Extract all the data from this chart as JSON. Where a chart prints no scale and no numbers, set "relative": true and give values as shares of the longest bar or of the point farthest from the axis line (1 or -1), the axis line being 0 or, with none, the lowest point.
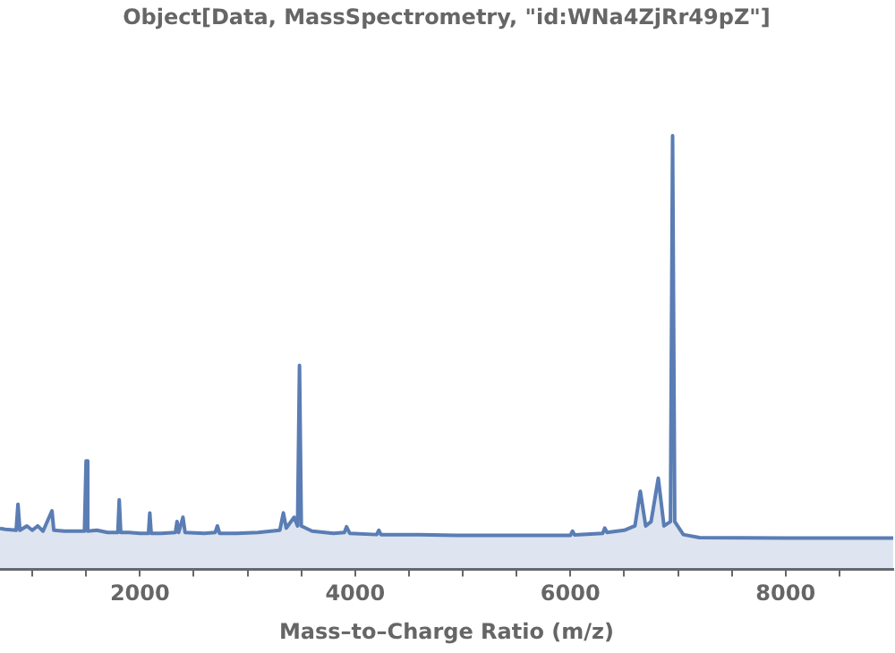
{
  "chart_data": {
    "type": "area",
    "title": "Object[Data, MassSpectrometry, \"id:WNa4ZjRr49pZ\"]",
    "xlabel": "Mass–to–Charge Ratio (m/z)",
    "relative": true,
    "grid": false,
    "legend": false,
    "color": "#5a7db4",
    "xlim": [
      700,
      9000
    ],
    "xticks": [
      {
        "value": 1000,
        "label": null
      },
      {
        "value": 1500,
        "label": null
      },
      2000,
      {
        "value": 2500,
        "label": null
      },
      {
        "value": 3000,
        "label": null
      },
      {
        "value": 3500,
        "label": null
      },
      4000,
      {
        "value": 4500,
        "label": null
      },
      {
        "value": 5000,
        "label": null
      },
      {
        "value": 5500,
        "label": null
      },
      6000,
      {
        "value": 6500,
        "label": null
      },
      {
        "value": 7000,
        "label": null
      },
      {
        "value": 7500,
        "label": null
      },
      8000,
      {
        "value": 8500,
        "label": null
      }
    ],
    "x": [
      700,
      750,
      850,
      867,
      885,
      950,
      1000,
      1050,
      1100,
      1183,
      1200,
      1300,
      1485,
      1500,
      1515,
      1600,
      1700,
      1795,
      1808,
      1822,
      1900,
      2000,
      2080,
      2092,
      2105,
      2200,
      2330,
      2345,
      2360,
      2400,
      2420,
      2600,
      2700,
      2720,
      2740,
      2900,
      3100,
      3300,
      3333,
      3360,
      3433,
      3465,
      3483,
      3500,
      3600,
      3800,
      3900,
      3920,
      3950,
      4200,
      4220,
      4240,
      4600,
      5000,
      5500,
      6000,
      6020,
      6040,
      6300,
      6320,
      6340,
      6500,
      6600,
      6650,
      6700,
      6750,
      6817,
      6870,
      6930,
      6950,
      6970,
      7050,
      7200,
      8000,
      9000
    ],
    "values": [
      0.094,
      0.092,
      0.09,
      0.15,
      0.09,
      0.1,
      0.09,
      0.1,
      0.088,
      0.135,
      0.09,
      0.088,
      0.088,
      0.25,
      0.088,
      0.09,
      0.085,
      0.085,
      0.16,
      0.085,
      0.085,
      0.083,
      0.083,
      0.13,
      0.083,
      0.083,
      0.085,
      0.11,
      0.085,
      0.12,
      0.085,
      0.083,
      0.085,
      0.1,
      0.083,
      0.083,
      0.085,
      0.09,
      0.13,
      0.095,
      0.12,
      0.1,
      0.47,
      0.1,
      0.088,
      0.083,
      0.085,
      0.098,
      0.083,
      0.08,
      0.09,
      0.08,
      0.08,
      0.078,
      0.078,
      0.078,
      0.088,
      0.079,
      0.083,
      0.095,
      0.085,
      0.09,
      0.1,
      0.18,
      0.1,
      0.11,
      0.21,
      0.1,
      0.11,
      1,
      0.11,
      0.08,
      0.073,
      0.072,
      0.072
    ]
  }
}
